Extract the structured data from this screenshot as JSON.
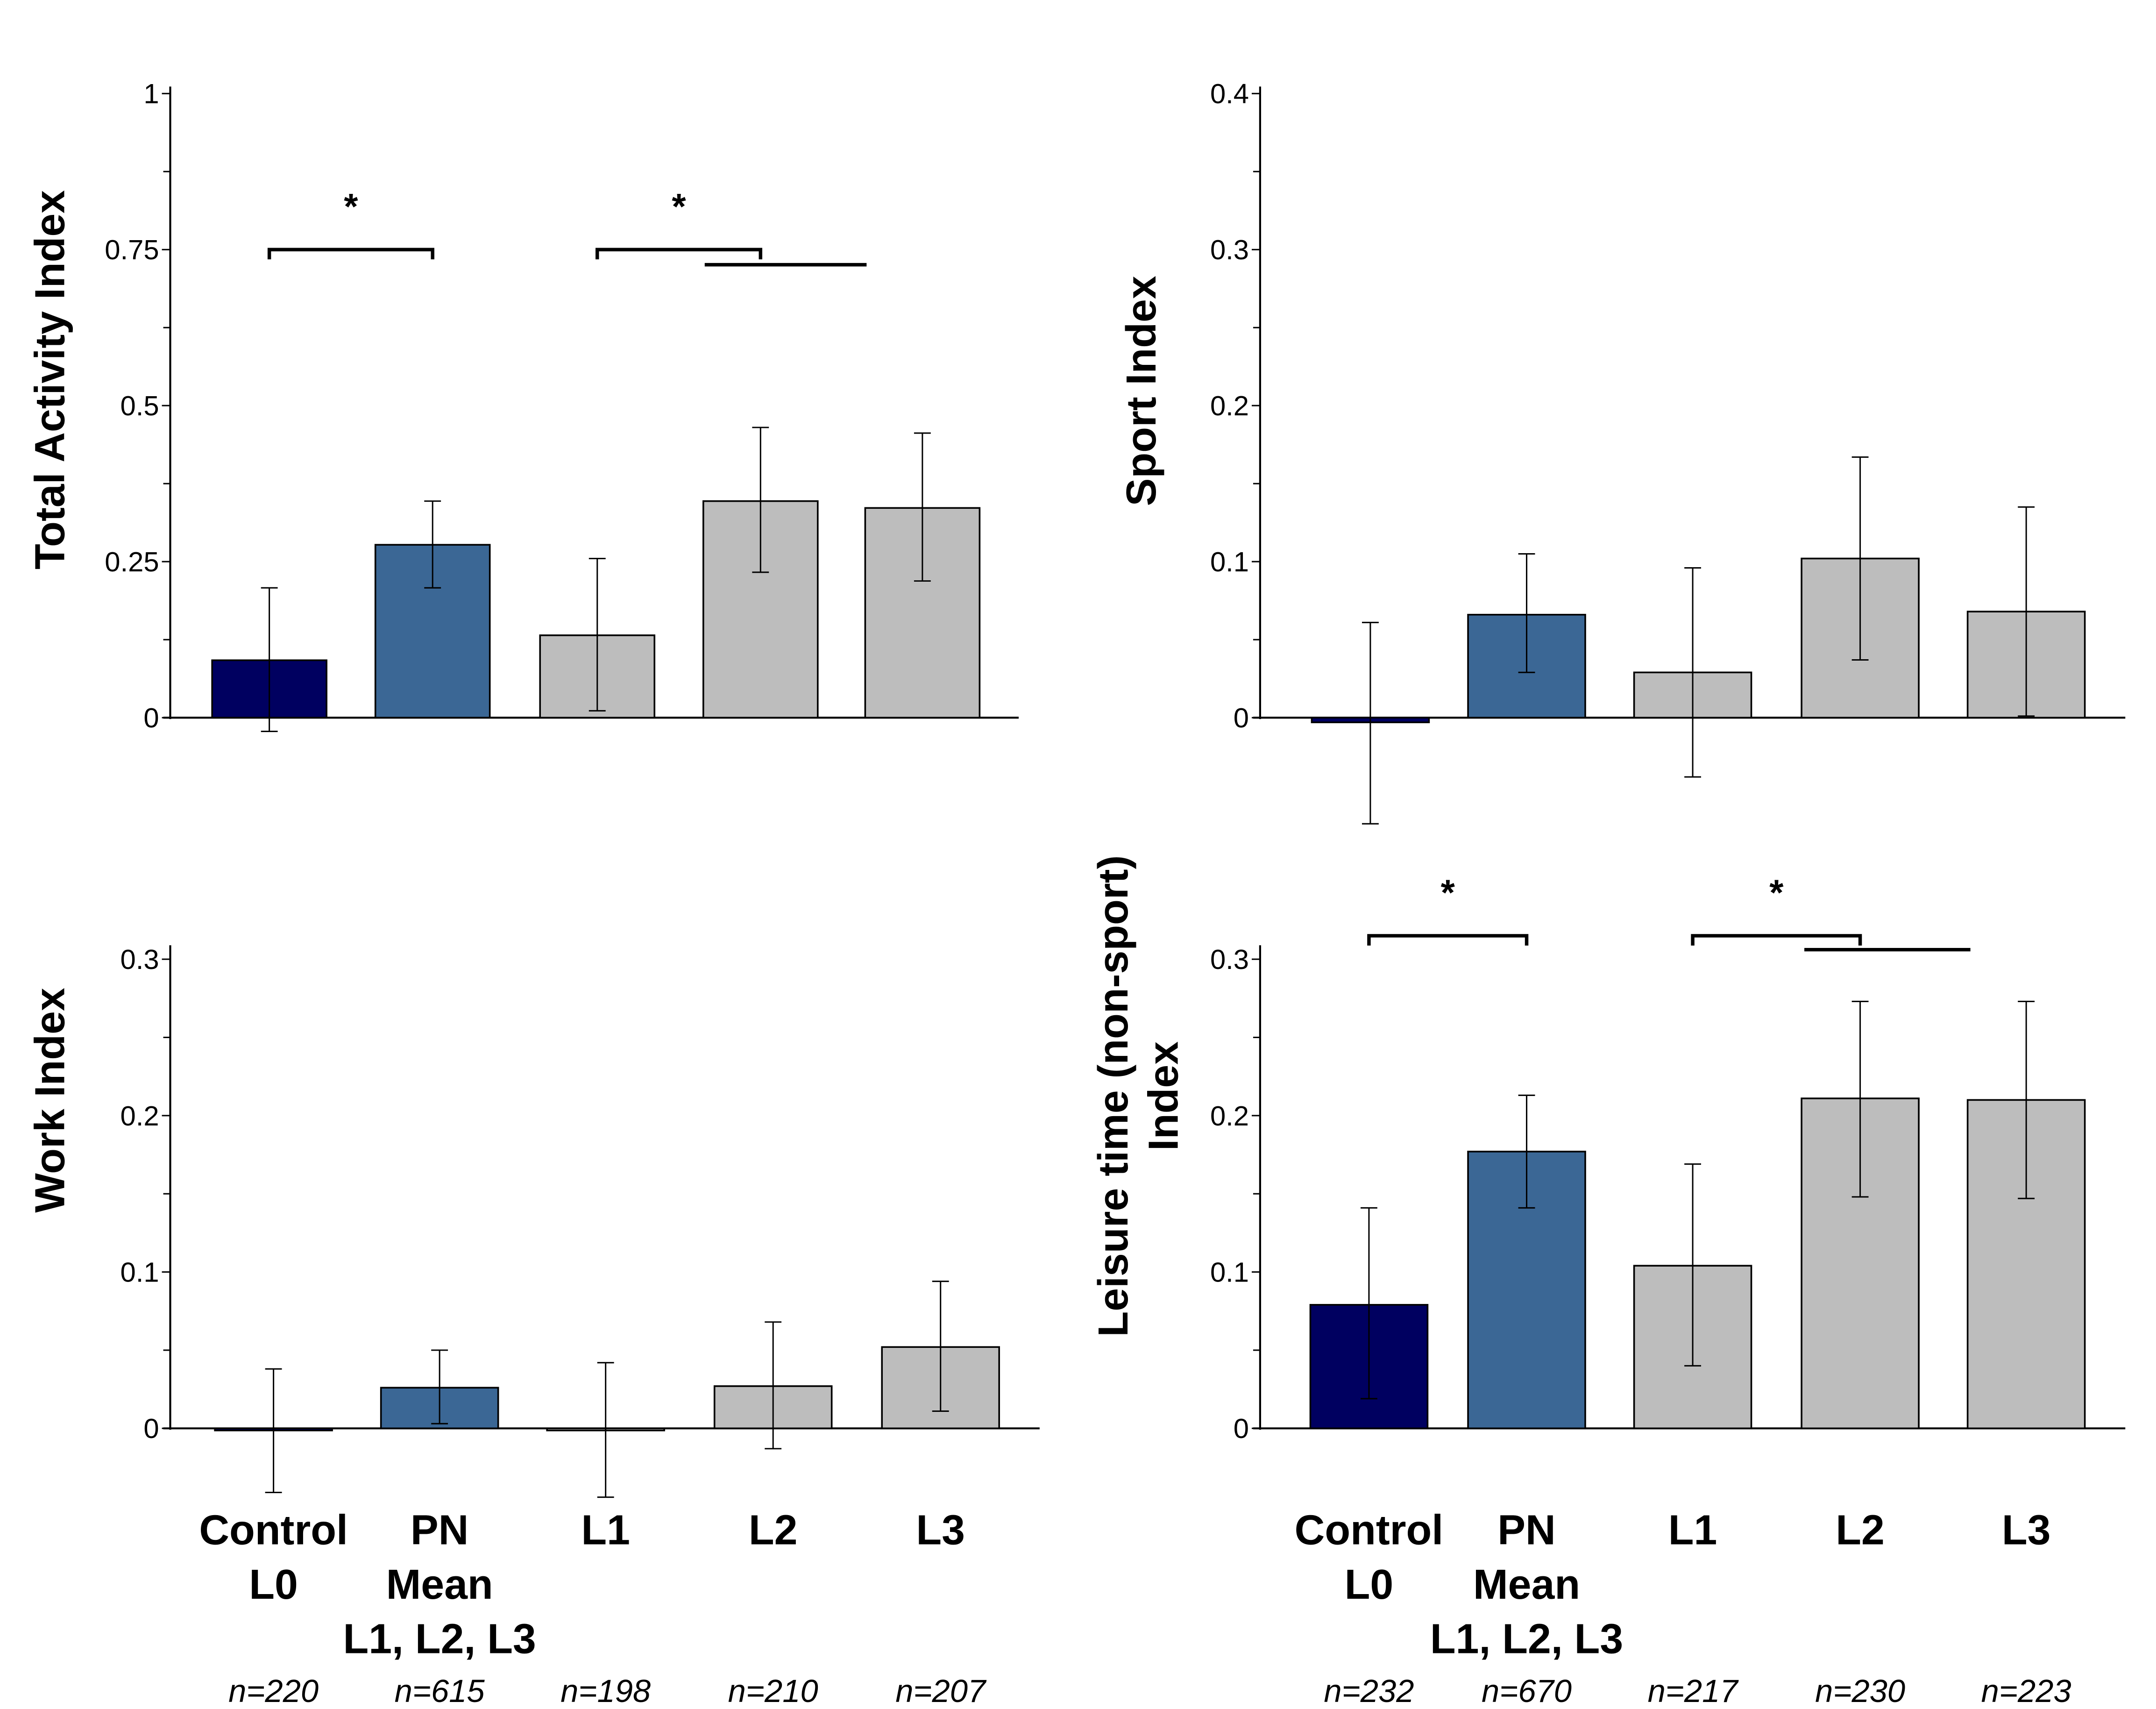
{
  "colors": {
    "control": "#000060",
    "pn_mean": "#3B6795",
    "level": "#BDBDBD",
    "stroke": "#000000"
  },
  "x_labels": {
    "lines": [
      [
        "Control",
        "L0"
      ],
      [
        "PN",
        "Mean",
        "L1, L2, L3"
      ],
      [
        "L1"
      ],
      [
        "L2"
      ],
      [
        "L3"
      ]
    ]
  },
  "chart_data": [
    {
      "id": "total_activity",
      "type": "bar",
      "ylabel": [
        "Total Activity Index"
      ],
      "categories": [
        "Control L0",
        "PN Mean L1, L2, L3",
        "L1",
        "L2",
        "L3"
      ],
      "values": [
        0.092,
        0.277,
        0.132,
        0.347,
        0.336
      ],
      "error_low": [
        -0.022,
        0.208,
        0.011,
        0.233,
        0.219
      ],
      "error_high": [
        0.208,
        0.347,
        0.255,
        0.465,
        0.456
      ],
      "ylim": [
        0,
        1
      ],
      "yticks": [
        0,
        0.25,
        0.5,
        0.75,
        1
      ],
      "ytick_labels": [
        "0",
        "0.25",
        "0.5",
        "0.75",
        "1"
      ],
      "n": [],
      "show_x_labels": false,
      "significance": [
        {
          "label": "*",
          "from": 0,
          "to": 1,
          "level": 0.75
        },
        {
          "label": "*",
          "from": 2,
          "to": 3,
          "level": 0.75,
          "sub_to": [
            3,
            4
          ],
          "sub_level": 0.728
        }
      ],
      "grid": false
    },
    {
      "id": "sport",
      "type": "bar",
      "ylabel": [
        "Sport Index"
      ],
      "categories": [
        "Control L0",
        "PN Mean L1, L2, L3",
        "L1",
        "L2",
        "L3"
      ],
      "values": [
        -0.003,
        0.066,
        0.029,
        0.102,
        0.068
      ],
      "error_low": [
        -0.068,
        0.029,
        -0.038,
        0.037,
        0.001
      ],
      "error_high": [
        0.061,
        0.105,
        0.096,
        0.167,
        0.135
      ],
      "ylim": [
        0,
        0.4
      ],
      "yticks": [
        0,
        0.1,
        0.2,
        0.3,
        0.4
      ],
      "ytick_labels": [
        "0",
        "0.1",
        "0.2",
        "0.3",
        "0.4"
      ],
      "n": [],
      "show_x_labels": false,
      "significance": [],
      "grid": false
    },
    {
      "id": "work",
      "type": "bar",
      "ylabel": [
        "Work Index"
      ],
      "categories": [
        "Control L0",
        "PN Mean L1, L2, L3",
        "L1",
        "L2",
        "L3"
      ],
      "values": [
        0.0,
        0.026,
        0.0,
        0.027,
        0.052
      ],
      "error_low": [
        -0.041,
        0.003,
        -0.044,
        -0.013,
        0.011
      ],
      "error_high": [
        0.038,
        0.05,
        0.042,
        0.068,
        0.094
      ],
      "ylim": [
        0,
        0.3
      ],
      "yticks": [
        0,
        0.1,
        0.2,
        0.3
      ],
      "ytick_labels": [
        "0",
        "0.1",
        "0.2",
        "0.3"
      ],
      "n": [
        "n=220",
        "n=615",
        "n=198",
        "n=210",
        "n=207"
      ],
      "show_x_labels": true,
      "significance": [],
      "grid": false
    },
    {
      "id": "leisure",
      "type": "bar",
      "ylabel": [
        "Leisure time (non-sport)",
        "Index"
      ],
      "categories": [
        "Control L0",
        "PN Mean L1, L2, L3",
        "L1",
        "L2",
        "L3"
      ],
      "values": [
        0.079,
        0.177,
        0.104,
        0.211,
        0.21
      ],
      "error_low": [
        0.019,
        0.141,
        0.04,
        0.148,
        0.147
      ],
      "error_high": [
        0.141,
        0.213,
        0.169,
        0.273,
        0.273
      ],
      "ylim": [
        0,
        0.3
      ],
      "yticks": [
        0,
        0.1,
        0.2,
        0.3
      ],
      "ytick_labels": [
        "0",
        "0.1",
        "0.2",
        "0.3"
      ],
      "n": [
        "n=232",
        "n=670",
        "n=217",
        "n=230",
        "n=223"
      ],
      "show_x_labels": true,
      "significance": [
        {
          "label": "*",
          "from": 0,
          "to": 1,
          "level": 0.315
        },
        {
          "label": "*",
          "from": 2,
          "to": 3,
          "level": 0.315,
          "sub_to": [
            3,
            4
          ],
          "sub_level": 0.307
        }
      ],
      "grid": false
    }
  ]
}
